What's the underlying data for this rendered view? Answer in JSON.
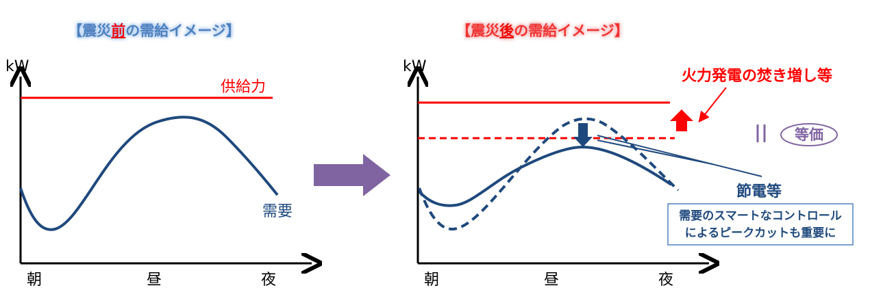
{
  "left": {
    "title": [
      "【震災",
      "前",
      "の需給イメージ】"
    ],
    "y_label": "kW",
    "x_labels": [
      "朝",
      "昼",
      "夜"
    ],
    "supply_label": "供給力",
    "demand_label": "需要"
  },
  "right": {
    "title": [
      "【震災",
      "後",
      "の需給イメージ】"
    ],
    "y_label": "kW",
    "x_labels": [
      "朝",
      "昼",
      "夜"
    ],
    "supply_note": "火力発電の焚き増し等",
    "equivalent_label": "等価",
    "saving_label": "節電等",
    "note_lines": [
      "需要のスマートなコントロール",
      "によるピークカットも重要に"
    ]
  }
}
